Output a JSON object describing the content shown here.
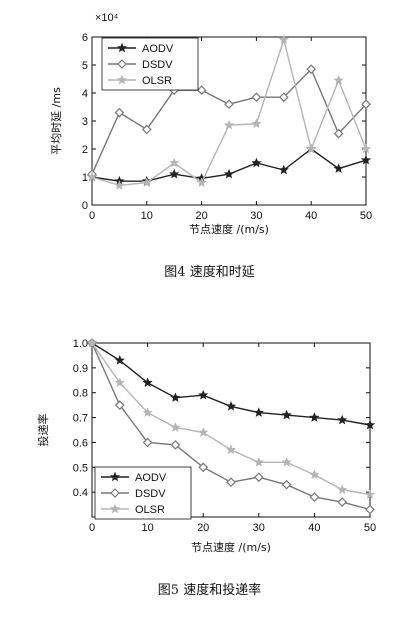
{
  "chart_data": [
    {
      "type": "line",
      "caption": "图4   速度和时延",
      "xlabel": "节点速度 /(m/s)",
      "ylabel": "平均时延 /ms",
      "exponent_label": "×10⁴",
      "xlim": [
        0,
        50
      ],
      "ylim": [
        0,
        6
      ],
      "xticks": [
        "0",
        "10",
        "20",
        "30",
        "40",
        "50"
      ],
      "yticks": [
        "0",
        "1",
        "2",
        "3",
        "4",
        "5",
        "6"
      ],
      "legend_position": "top-left",
      "x": [
        0,
        5,
        10,
        15,
        20,
        25,
        30,
        35,
        40,
        45,
        50
      ],
      "series": [
        {
          "name": "AODV",
          "color": "#222222",
          "marker": "star",
          "values": [
            1.0,
            0.85,
            0.85,
            1.1,
            0.95,
            1.1,
            1.5,
            1.25,
            2.0,
            1.3,
            1.6
          ]
        },
        {
          "name": "DSDV",
          "color": "#777777",
          "marker": "diamond",
          "values": [
            1.1,
            3.3,
            2.7,
            4.1,
            4.1,
            3.6,
            3.85,
            3.85,
            4.85,
            2.55,
            3.6
          ]
        },
        {
          "name": "OLSR",
          "color": "#b5b5b5",
          "marker": "star",
          "values": [
            1.0,
            0.7,
            0.8,
            1.5,
            0.8,
            2.85,
            2.9,
            5.9,
            2.0,
            4.45,
            2.0
          ]
        }
      ]
    },
    {
      "type": "line",
      "caption": "图5   速度和投递率",
      "xlabel": "节点速度 /(m/s)",
      "ylabel": "投递率",
      "xlim": [
        0,
        50
      ],
      "ylim": [
        0.3,
        1.0
      ],
      "xticks": [
        "0",
        "10",
        "20",
        "30",
        "40",
        "50"
      ],
      "yticks": [
        "0.4",
        "0.5",
        "0.6",
        "0.7",
        "0.8",
        "0.9",
        "1.0"
      ],
      "legend_position": "bottom-left",
      "x": [
        0,
        5,
        10,
        15,
        20,
        25,
        30,
        35,
        40,
        45,
        50
      ],
      "series": [
        {
          "name": "AODV",
          "color": "#222222",
          "marker": "star",
          "values": [
            1.0,
            0.93,
            0.84,
            0.78,
            0.79,
            0.745,
            0.72,
            0.71,
            0.7,
            0.69,
            0.67
          ]
        },
        {
          "name": "DSDV",
          "color": "#777777",
          "marker": "diamond",
          "values": [
            1.0,
            0.75,
            0.6,
            0.59,
            0.5,
            0.44,
            0.46,
            0.43,
            0.38,
            0.36,
            0.33
          ]
        },
        {
          "name": "OLSR",
          "color": "#b5b5b5",
          "marker": "star",
          "values": [
            1.0,
            0.84,
            0.72,
            0.66,
            0.64,
            0.57,
            0.52,
            0.52,
            0.47,
            0.41,
            0.39
          ]
        }
      ]
    }
  ]
}
